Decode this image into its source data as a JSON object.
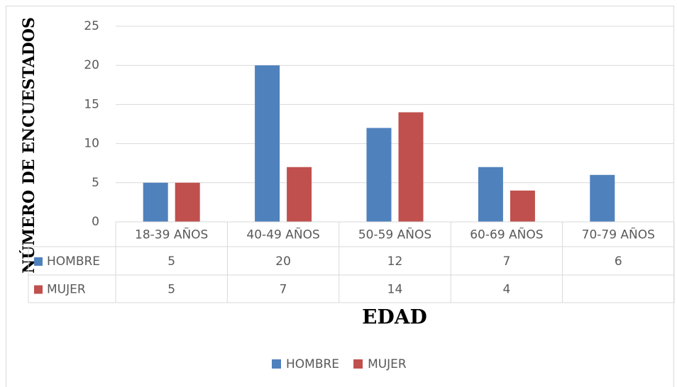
{
  "chart_data": {
    "type": "bar",
    "y_axis_label": "NÚMERO DE ENCUESTADOS",
    "x_axis_label": "EDAD",
    "categories": [
      "18-39 AÑOS",
      "40-49 AÑOS",
      "50-59 AÑOS",
      "60-69 AÑOS",
      "70-79 AÑOS"
    ],
    "series": [
      {
        "name": "HOMBRE",
        "color": "#4f81bd",
        "values": [
          5,
          20,
          12,
          7,
          6
        ]
      },
      {
        "name": "MUJER",
        "color": "#c0504d",
        "values": [
          5,
          7,
          14,
          4,
          null
        ]
      }
    ],
    "ylim": [
      0,
      25
    ],
    "yticks": [
      0,
      5,
      10,
      15,
      20,
      25
    ],
    "grid": true,
    "legend": "bottom",
    "data_table": true
  }
}
